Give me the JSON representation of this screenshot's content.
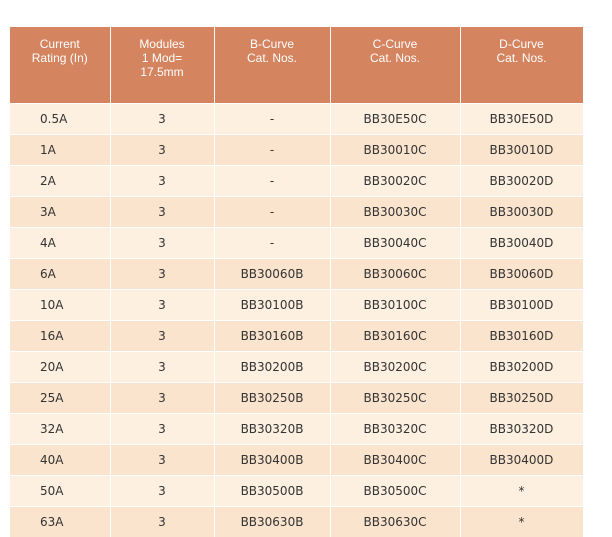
{
  "table": {
    "headers": [
      "Current\nRating (In)",
      "Modules\n1 Mod=\n17.5mm",
      "B-Curve\nCat. Nos.",
      "C-Curve\nCat. Nos.",
      "D-Curve\nCat. Nos."
    ],
    "rows": [
      [
        "0.5A",
        "3",
        "-",
        "BB30E50C",
        "BB30E50D"
      ],
      [
        "1A",
        "3",
        "-",
        "BB30010C",
        "BB30010D"
      ],
      [
        "2A",
        "3",
        "-",
        "BB30020C",
        "BB30020D"
      ],
      [
        "3A",
        "3",
        "-",
        "BB30030C",
        "BB30030D"
      ],
      [
        "4A",
        "3",
        "-",
        "BB30040C",
        "BB30040D"
      ],
      [
        "6A",
        "3",
        "BB30060B",
        "BB30060C",
        "BB30060D"
      ],
      [
        "10A",
        "3",
        "BB30100B",
        "BB30100C",
        "BB30100D"
      ],
      [
        "16A",
        "3",
        "BB30160B",
        "BB30160C",
        "BB30160D"
      ],
      [
        "20A",
        "3",
        "BB30200B",
        "BB30200C",
        "BB30200D"
      ],
      [
        "25A",
        "3",
        "BB30250B",
        "BB30250C",
        "BB30250D"
      ],
      [
        "32A",
        "3",
        "BB30320B",
        "BB30320C",
        "BB30320D"
      ],
      [
        "40A",
        "3",
        "BB30400B",
        "BB30400C",
        "BB30400D"
      ],
      [
        "50A",
        "3",
        "BB30500B",
        "BB30500C",
        "*"
      ],
      [
        "63A",
        "3",
        "BB30630B",
        "BB30630C",
        "*"
      ]
    ]
  }
}
